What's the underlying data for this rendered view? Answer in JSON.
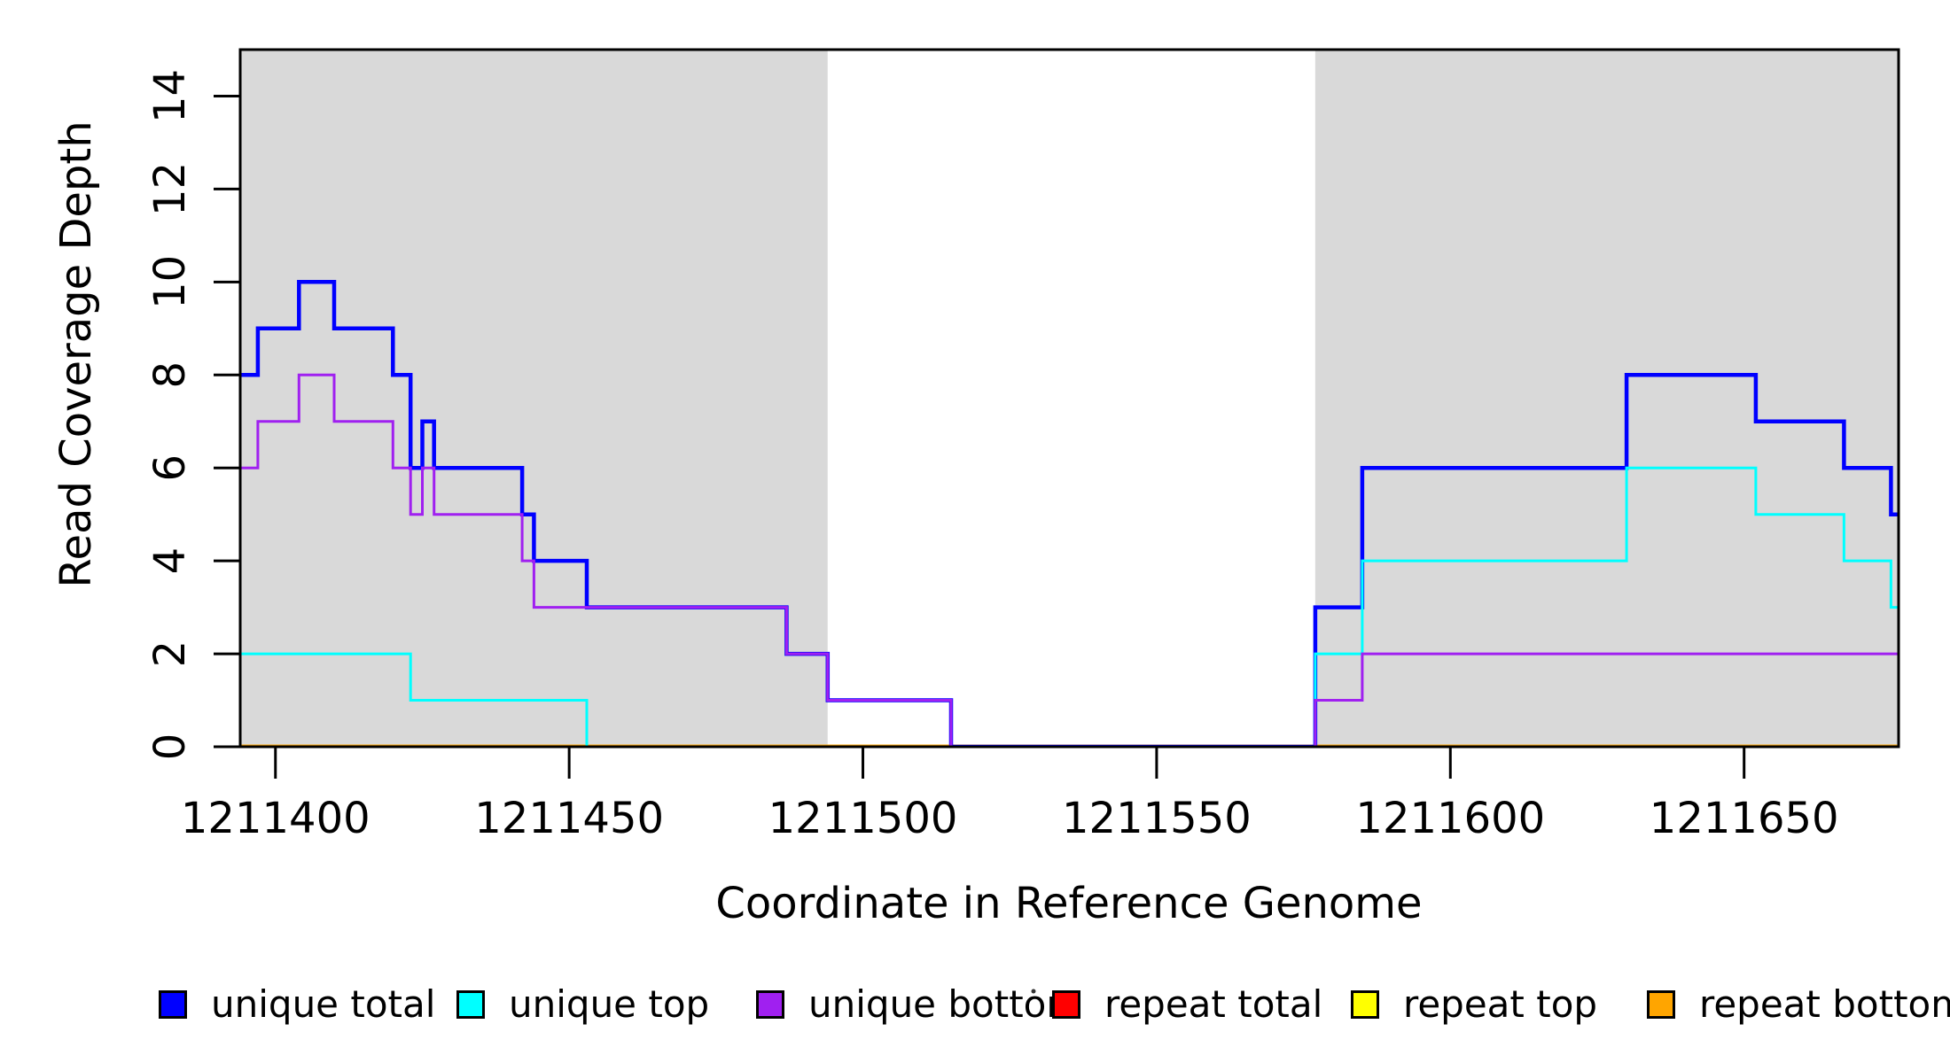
{
  "figure": {
    "background": "#FFFFFF",
    "frame_color": "#000000",
    "shade_color": "#D9D9D9"
  },
  "chart_data": {
    "type": "line",
    "subtype": "step",
    "title": "",
    "xlabel": "Coordinate in Reference Genome",
    "ylabel": "Read Coverage Depth",
    "xlim": [
      1211394,
      1211676.3
    ],
    "ylim": [
      0,
      15
    ],
    "x_ticks": [
      1211400,
      1211450,
      1211500,
      1211550,
      1211600,
      1211650
    ],
    "y_ticks": [
      0,
      2,
      4,
      6,
      8,
      10,
      12,
      14
    ],
    "grid": false,
    "legend_position": "bottom",
    "shaded_x_regions": [
      {
        "from": 1211394,
        "to": 1211494
      },
      {
        "from": 1211577,
        "to": 1211676.3
      }
    ],
    "series": [
      {
        "name": "repeat total",
        "color": "#FF0000",
        "width": 3,
        "steps": [
          [
            1211394,
            0
          ]
        ]
      },
      {
        "name": "repeat top",
        "color": "#FFFF00",
        "width": 3,
        "steps": [
          [
            1211394,
            0
          ]
        ]
      },
      {
        "name": "repeat bottom",
        "color": "#FFA500",
        "width": 5,
        "steps": [
          [
            1211394,
            0
          ]
        ]
      },
      {
        "name": "unique total",
        "color": "#0000FF",
        "width": 4.5,
        "steps": [
          [
            1211394,
            8
          ],
          [
            1211397,
            9
          ],
          [
            1211404,
            10
          ],
          [
            1211410,
            9
          ],
          [
            1211420,
            8
          ],
          [
            1211423,
            6
          ],
          [
            1211425,
            7
          ],
          [
            1211427,
            6
          ],
          [
            1211442,
            5
          ],
          [
            1211444,
            4
          ],
          [
            1211453,
            3
          ],
          [
            1211487,
            2
          ],
          [
            1211494,
            1
          ],
          [
            1211515,
            0
          ],
          [
            1211577,
            3
          ],
          [
            1211585,
            6
          ],
          [
            1211630,
            8
          ],
          [
            1211652,
            7
          ],
          [
            1211667,
            6
          ],
          [
            1211675,
            5
          ]
        ]
      },
      {
        "name": "unique top",
        "color": "#00FFFF",
        "width": 3,
        "steps": [
          [
            1211394,
            2
          ],
          [
            1211423,
            1
          ],
          [
            1211453,
            0
          ],
          [
            1211577,
            2
          ],
          [
            1211585,
            4
          ],
          [
            1211630,
            6
          ],
          [
            1211652,
            5
          ],
          [
            1211667,
            4
          ],
          [
            1211675,
            3
          ]
        ]
      },
      {
        "name": "unique bottom",
        "color": "#A020F0",
        "width": 3,
        "steps": [
          [
            1211394,
            6
          ],
          [
            1211397,
            7
          ],
          [
            1211404,
            8
          ],
          [
            1211410,
            7
          ],
          [
            1211420,
            6
          ],
          [
            1211423,
            5
          ],
          [
            1211425,
            6
          ],
          [
            1211427,
            5
          ],
          [
            1211442,
            4
          ],
          [
            1211444,
            3
          ],
          [
            1211487,
            2
          ],
          [
            1211494,
            1
          ],
          [
            1211515,
            0
          ],
          [
            1211577,
            1
          ],
          [
            1211585,
            2
          ]
        ]
      }
    ]
  },
  "legend": {
    "items": [
      {
        "label": "unique total",
        "color": "#0000FF"
      },
      {
        "label": "unique top",
        "color": "#00FFFF"
      },
      {
        "label": "unique bottom",
        "color": "#A020F0"
      },
      {
        "label": "repeat total",
        "color": "#FF0000"
      },
      {
        "label": "repeat top",
        "color": "#FFFF00"
      },
      {
        "label": "repeat bottom",
        "color": "#FFA500"
      }
    ]
  }
}
